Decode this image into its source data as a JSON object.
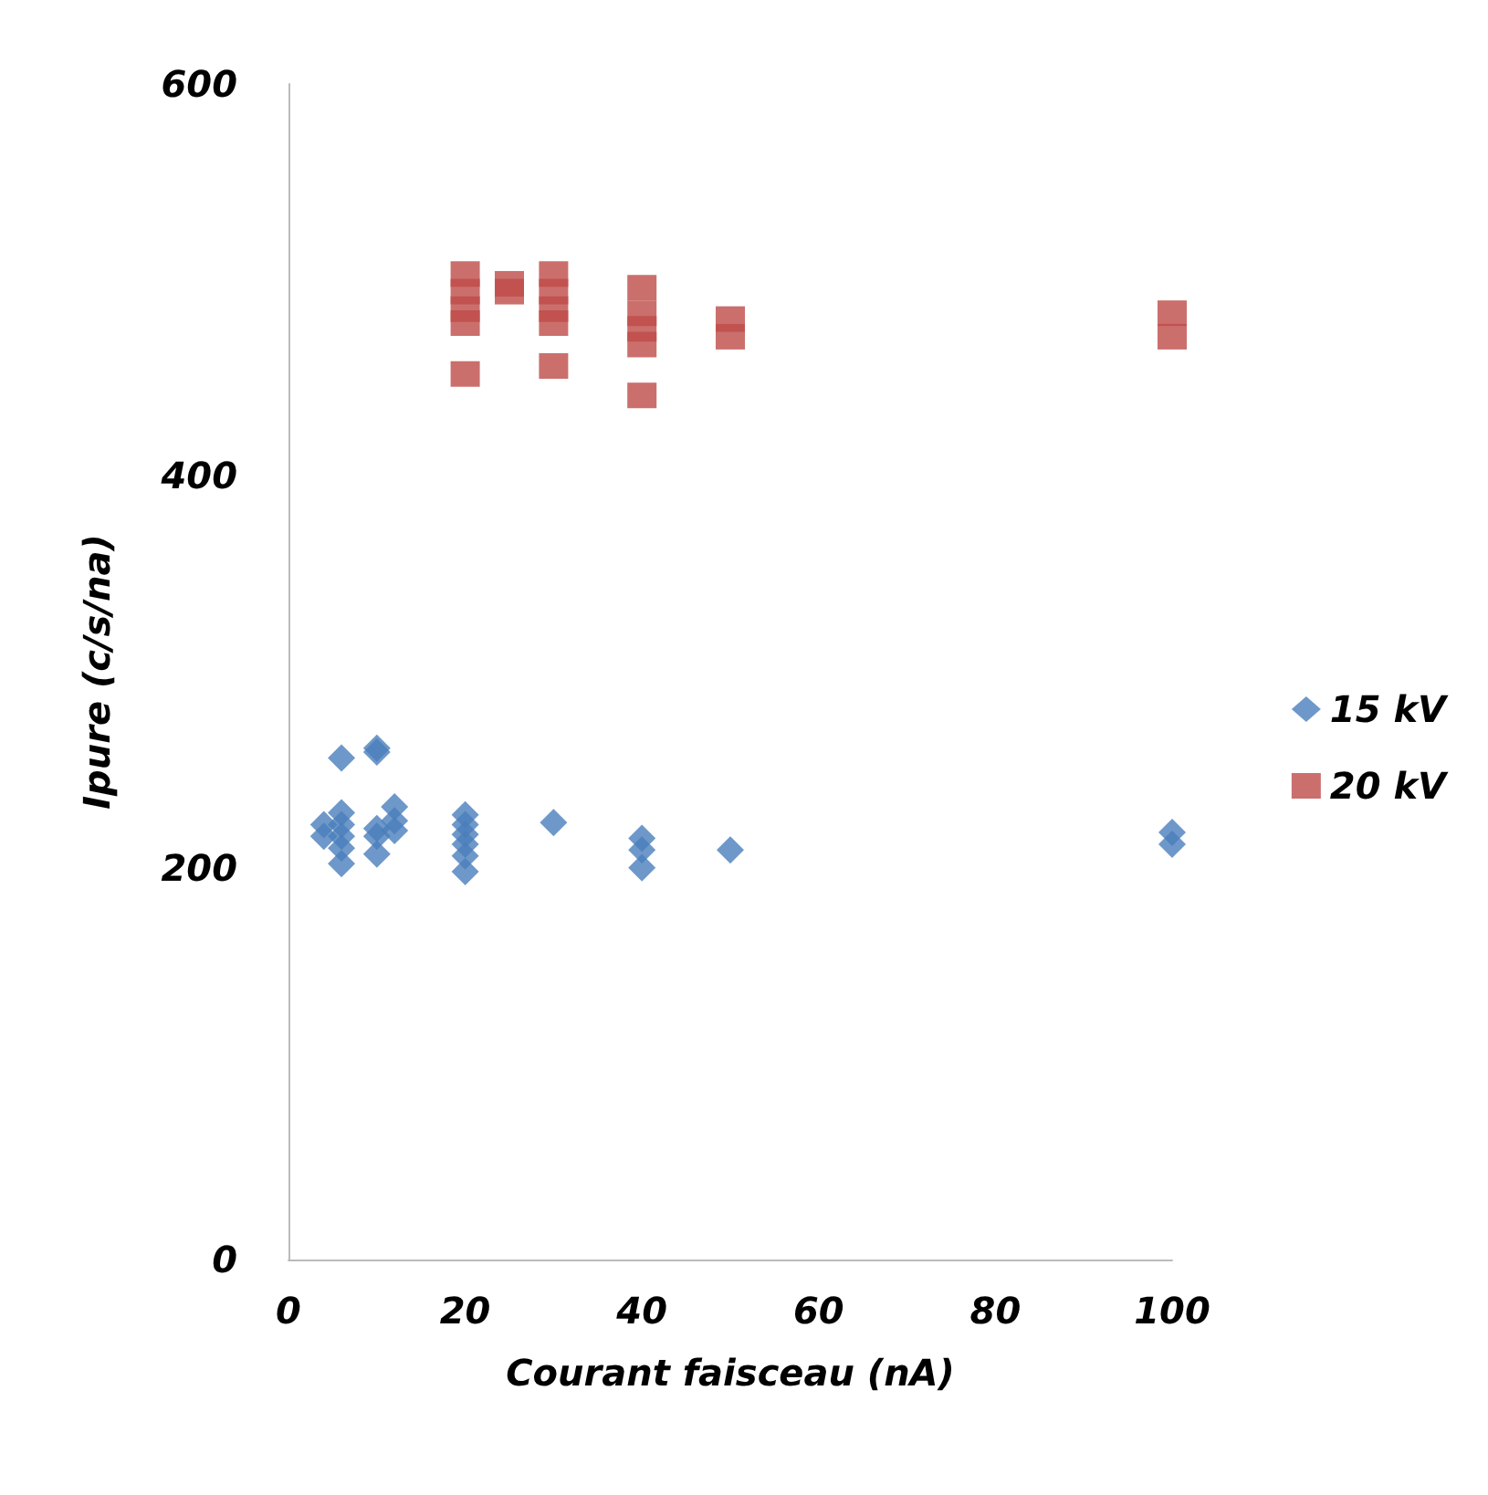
{
  "chart_data": {
    "type": "scatter",
    "xlabel": "Courant faisceau (nA)",
    "ylabel": "Ipure (c/s/na)",
    "xlim": [
      0,
      100
    ],
    "xticks": [
      0,
      20,
      40,
      60,
      80,
      100
    ],
    "ylim": [
      0,
      600
    ],
    "yticks": [
      0,
      200,
      400,
      600
    ],
    "grid": false,
    "legend": "right",
    "series": [
      {
        "name": "15 kV",
        "color": "#4a7ebb",
        "marker": "diamond",
        "x": [
          4,
          4,
          6,
          6,
          6,
          6,
          6,
          6,
          10,
          10,
          10,
          10,
          10,
          12,
          12,
          12,
          20,
          20,
          20,
          20,
          20,
          20,
          30,
          40,
          40,
          40,
          50,
          100,
          100
        ],
        "values": [
          222,
          216,
          256,
          228,
          222,
          216,
          210,
          202,
          261,
          259,
          220,
          216,
          207,
          231,
          224,
          219,
          227,
          222,
          217,
          212,
          206,
          198,
          223,
          215,
          209,
          200,
          209,
          218,
          212
        ]
      },
      {
        "name": "20 kV",
        "color": "#be4b48",
        "marker": "square",
        "x": [
          20,
          20,
          20,
          20,
          20,
          25,
          25,
          30,
          30,
          30,
          30,
          30,
          40,
          40,
          40,
          40,
          40,
          50,
          50,
          100,
          100
        ],
        "values": [
          503,
          494,
          485,
          478,
          452,
          498,
          494,
          503,
          494,
          485,
          478,
          456,
          496,
          483,
          475,
          467,
          441,
          480,
          471,
          483,
          471
        ]
      }
    ]
  }
}
